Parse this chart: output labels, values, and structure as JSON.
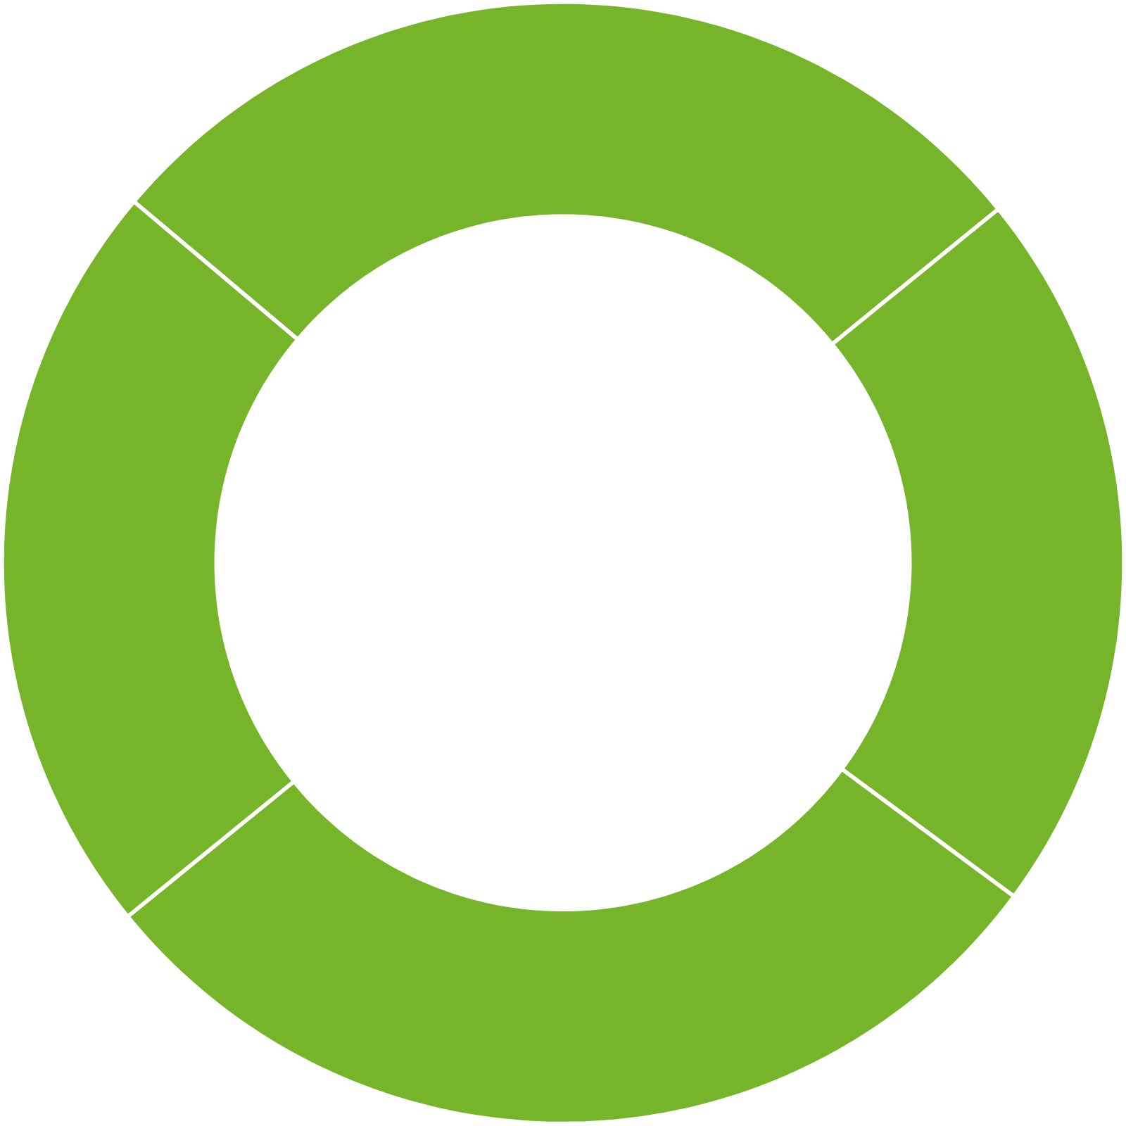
{
  "chart_data": {
    "type": "donut",
    "categories": [
      null,
      null,
      null,
      null
    ],
    "values": [
      28,
      21,
      29,
      22
    ],
    "colors": [
      "#76b52a",
      "#76b52a",
      "#76b52a",
      "#76b52a"
    ]
  }
}
